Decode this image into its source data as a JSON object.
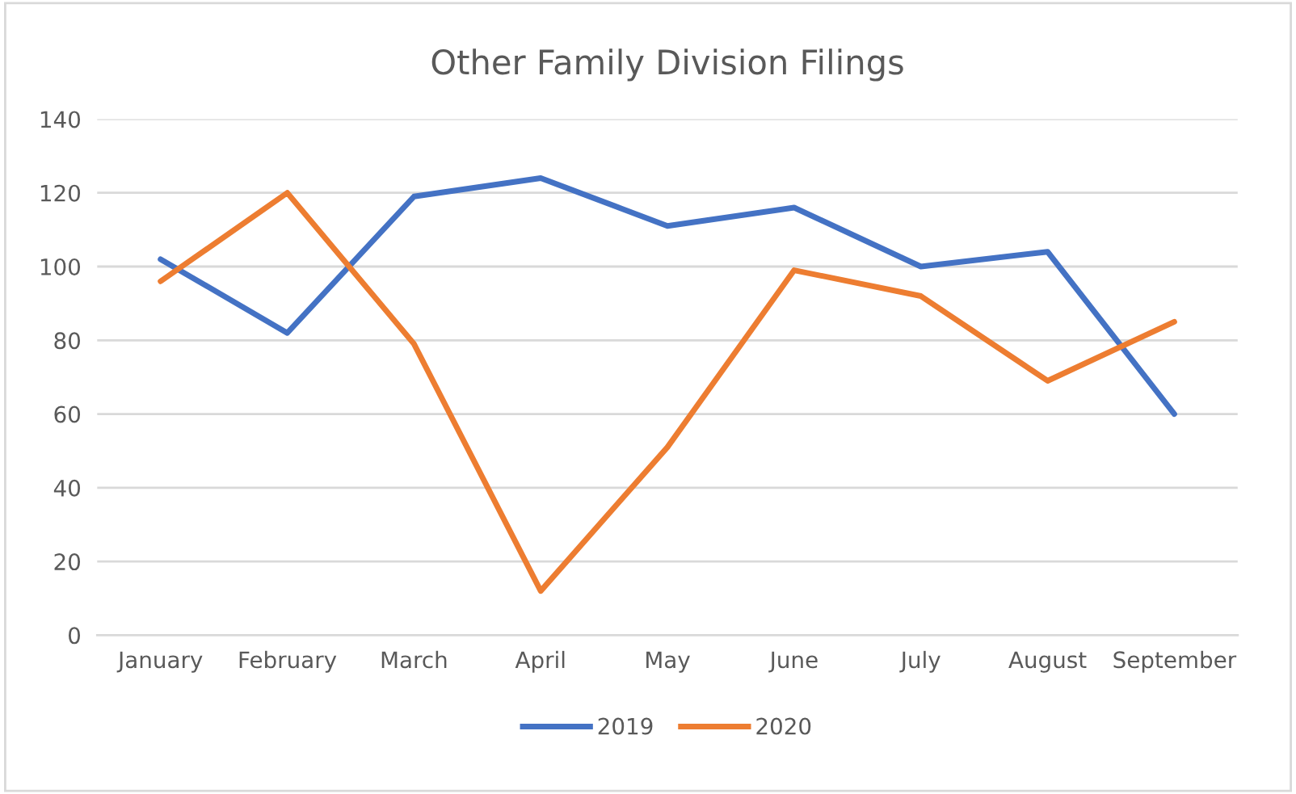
{
  "chart_data": {
    "type": "line",
    "title": "Other Family Division Filings",
    "categories": [
      "January",
      "February",
      "March",
      "April",
      "May",
      "June",
      "July",
      "August",
      "September"
    ],
    "series": [
      {
        "name": "2019",
        "color": "#4472c4",
        "values": [
          102,
          82,
          119,
          124,
          111,
          116,
          100,
          104,
          60
        ]
      },
      {
        "name": "2020",
        "color": "#ed7d31",
        "values": [
          96,
          120,
          79,
          12,
          51,
          99,
          92,
          69,
          85
        ]
      }
    ],
    "ylim": [
      0,
      140
    ],
    "yticks": [
      0,
      20,
      40,
      60,
      80,
      100,
      120,
      140
    ],
    "grid": "y",
    "legend": "bottom",
    "marker": "none",
    "line_style": "solid"
  }
}
